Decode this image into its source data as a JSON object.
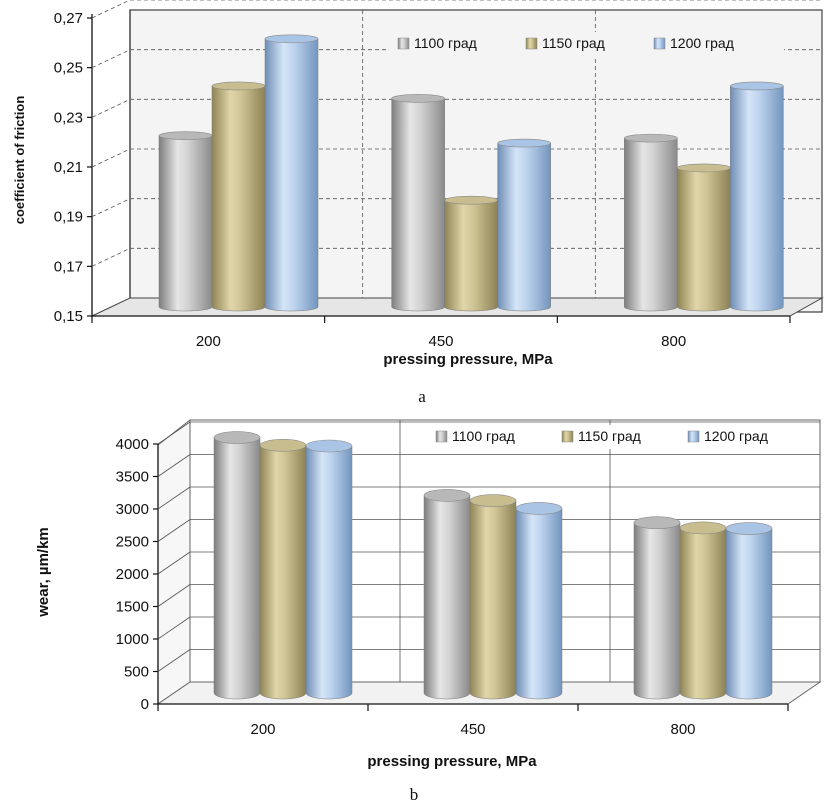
{
  "chart_data": [
    {
      "type": "bar",
      "categories": [
        "200",
        "450",
        "800"
      ],
      "series": [
        {
          "name": "1100 град",
          "values": [
            0.219,
            0.234,
            0.218
          ],
          "color": "#b8b8b8"
        },
        {
          "name": "1150 град",
          "values": [
            0.239,
            0.193,
            0.206
          ],
          "color": "#c8bd8e"
        },
        {
          "name": "1200 град",
          "values": [
            0.258,
            0.216,
            0.239
          ],
          "color": "#a9c4e4"
        }
      ],
      "xlabel": "pressing pressure, MPa",
      "ylabel": "coefficient of friction",
      "ylim": [
        0.15,
        0.27
      ],
      "yticks": [
        "0,15",
        "0,17",
        "0,19",
        "0,21",
        "0,23",
        "0,25",
        "0,27"
      ],
      "ytick_values": [
        0.15,
        0.17,
        0.19,
        0.21,
        0.23,
        0.25,
        0.27
      ],
      "grid": true,
      "legend": "top-right",
      "caption": "a"
    },
    {
      "type": "bar",
      "categories": [
        "200",
        "450",
        "800"
      ],
      "series": [
        {
          "name": "1100 град",
          "values": [
            3930,
            3040,
            2620
          ],
          "color": "#b8b8b8"
        },
        {
          "name": "1150 град",
          "values": [
            3810,
            2960,
            2540
          ],
          "color": "#c8bd8e"
        },
        {
          "name": "1200 град",
          "values": [
            3800,
            2840,
            2530
          ],
          "color": "#a9c4e4"
        }
      ],
      "xlabel": "pressing pressure, MPa",
      "ylabel": "wear, µm/km",
      "ylim": [
        0,
        4000
      ],
      "yticks": [
        "0",
        "500",
        "1000",
        "1500",
        "2000",
        "2500",
        "3000",
        "3500",
        "4000"
      ],
      "ytick_values": [
        0,
        500,
        1000,
        1500,
        2000,
        2500,
        3000,
        3500,
        4000
      ],
      "grid": true,
      "legend": "top-right",
      "caption": "b"
    }
  ]
}
